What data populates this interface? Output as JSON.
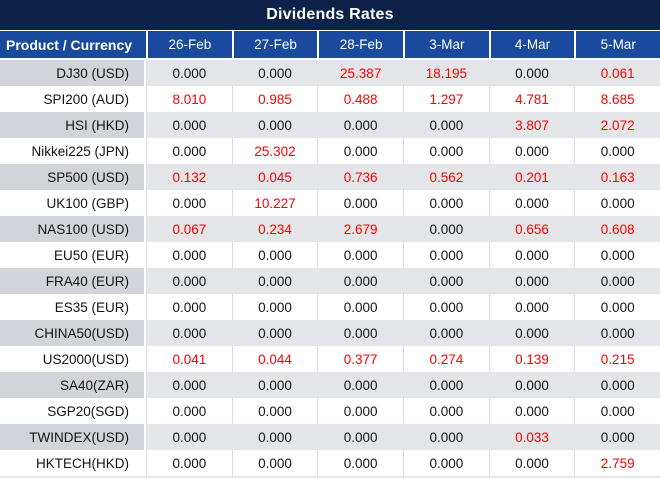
{
  "title": "Dividends Rates",
  "colors": {
    "title_bg": "#0C2248",
    "header_bg": "#1A4A9E",
    "label_gray": "#D1D4D8",
    "cell_gray": "#E4E5E8",
    "value_red": "#FF0000",
    "value_black": "#141414"
  },
  "table": {
    "corner_header": "Product / Currency",
    "date_columns": [
      "26-Feb",
      "27-Feb",
      "28-Feb",
      "3-Mar",
      "4-Mar",
      "5-Mar"
    ],
    "rows": [
      {
        "product": "DJ30 (USD)",
        "values": [
          "0.000",
          "0.000",
          "25.387",
          "18.195",
          "0.000",
          "0.061"
        ],
        "red": [
          false,
          false,
          true,
          true,
          false,
          true
        ]
      },
      {
        "product": "SPI200 (AUD)",
        "values": [
          "8.010",
          "0.985",
          "0.488",
          "1.297",
          "4.781",
          "8.685"
        ],
        "red": [
          true,
          true,
          true,
          true,
          true,
          true
        ]
      },
      {
        "product": "HSI (HKD)",
        "values": [
          "0.000",
          "0.000",
          "0.000",
          "0.000",
          "3.807",
          "2.072"
        ],
        "red": [
          false,
          false,
          false,
          false,
          true,
          true
        ]
      },
      {
        "product": "Nikkei225 (JPN)",
        "values": [
          "0.000",
          "25.302",
          "0.000",
          "0.000",
          "0.000",
          "0.000"
        ],
        "red": [
          false,
          true,
          false,
          false,
          false,
          false
        ]
      },
      {
        "product": "SP500 (USD)",
        "values": [
          "0.132",
          "0.045",
          "0.736",
          "0.562",
          "0.201",
          "0.163"
        ],
        "red": [
          true,
          true,
          true,
          true,
          true,
          true
        ]
      },
      {
        "product": "UK100 (GBP)",
        "values": [
          "0.000",
          "10.227",
          "0.000",
          "0.000",
          "0.000",
          "0.000"
        ],
        "red": [
          false,
          true,
          false,
          false,
          false,
          false
        ]
      },
      {
        "product": "NAS100 (USD)",
        "values": [
          "0.067",
          "0.234",
          "2.679",
          "0.000",
          "0.656",
          "0.608"
        ],
        "red": [
          true,
          true,
          true,
          false,
          true,
          true
        ]
      },
      {
        "product": "EU50 (EUR)",
        "values": [
          "0.000",
          "0.000",
          "0.000",
          "0.000",
          "0.000",
          "0.000"
        ],
        "red": [
          false,
          false,
          false,
          false,
          false,
          false
        ]
      },
      {
        "product": "FRA40 (EUR)",
        "values": [
          "0.000",
          "0.000",
          "0.000",
          "0.000",
          "0.000",
          "0.000"
        ],
        "red": [
          false,
          false,
          false,
          false,
          false,
          false
        ]
      },
      {
        "product": "ES35 (EUR)",
        "values": [
          "0.000",
          "0.000",
          "0.000",
          "0.000",
          "0.000",
          "0.000"
        ],
        "red": [
          false,
          false,
          false,
          false,
          false,
          false
        ]
      },
      {
        "product": "CHINA50(USD)",
        "values": [
          "0.000",
          "0.000",
          "0.000",
          "0.000",
          "0.000",
          "0.000"
        ],
        "red": [
          false,
          false,
          false,
          false,
          false,
          false
        ]
      },
      {
        "product": "US2000(USD)",
        "values": [
          "0.041",
          "0.044",
          "0.377",
          "0.274",
          "0.139",
          "0.215"
        ],
        "red": [
          true,
          true,
          true,
          true,
          true,
          true
        ]
      },
      {
        "product": "SA40(ZAR)",
        "values": [
          "0.000",
          "0.000",
          "0.000",
          "0.000",
          "0.000",
          "0.000"
        ],
        "red": [
          false,
          false,
          false,
          false,
          false,
          false
        ]
      },
      {
        "product": "SGP20(SGD)",
        "values": [
          "0.000",
          "0.000",
          "0.000",
          "0.000",
          "0.000",
          "0.000"
        ],
        "red": [
          false,
          false,
          false,
          false,
          false,
          false
        ]
      },
      {
        "product": "TWINDEX(USD)",
        "values": [
          "0.000",
          "0.000",
          "0.000",
          "0.000",
          "0.033",
          "0.000"
        ],
        "red": [
          false,
          false,
          false,
          false,
          true,
          false
        ]
      },
      {
        "product": "HKTECH(HKD)",
        "values": [
          "0.000",
          "0.000",
          "0.000",
          "0.000",
          "0.000",
          "2.759"
        ],
        "red": [
          false,
          false,
          false,
          false,
          false,
          true
        ]
      }
    ]
  }
}
